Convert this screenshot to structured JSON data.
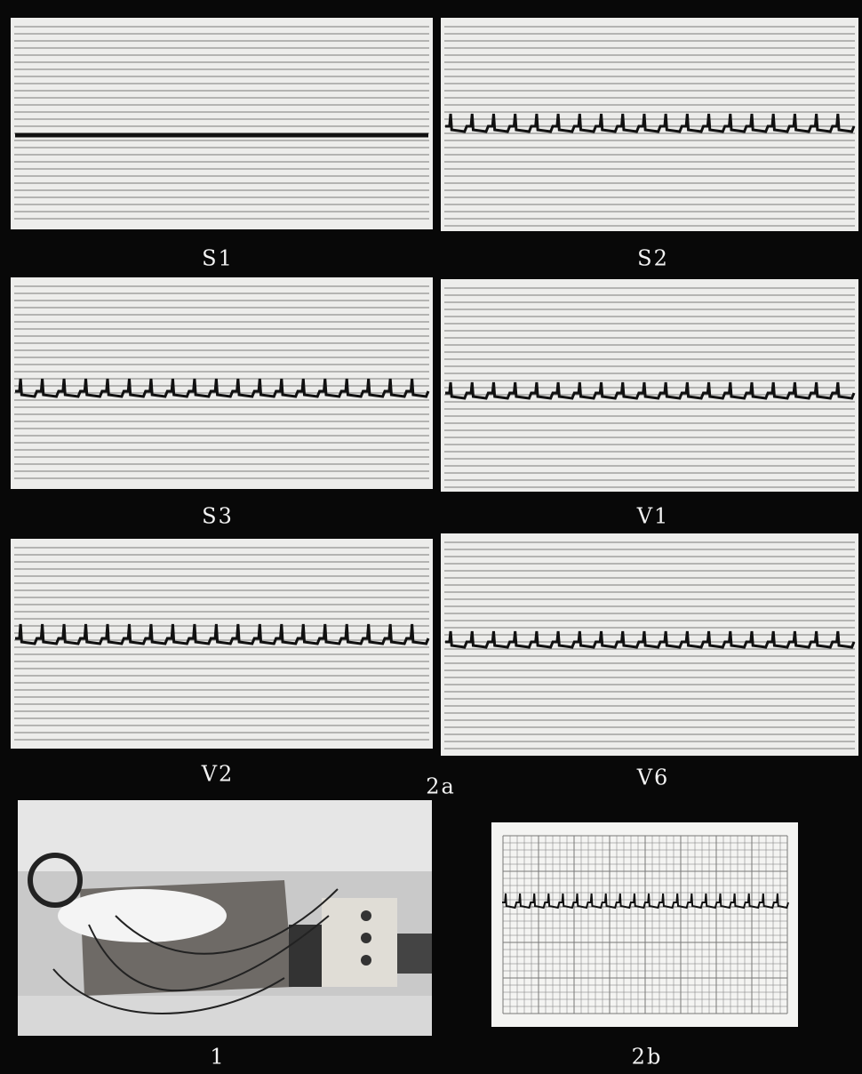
{
  "panels": [
    {
      "label": "S1"
    },
    {
      "label": "S2"
    },
    {
      "label": "S3"
    },
    {
      "label": "V1"
    },
    {
      "label": "V2"
    },
    {
      "label": "V6"
    }
  ],
  "figure_label": "2a",
  "photo_label": "1",
  "ecg_label": "2b"
}
